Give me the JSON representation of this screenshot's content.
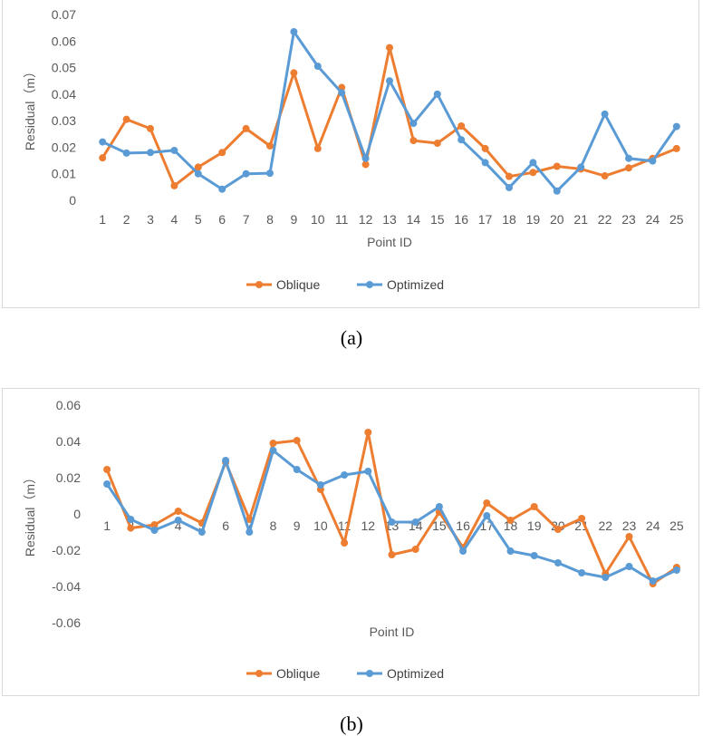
{
  "figure": {
    "caption_a": "(a)",
    "caption_b": "(b)"
  },
  "chart_data": [
    {
      "type": "line",
      "panel": "a",
      "xlabel": "Point ID",
      "ylabel": "Residual（m）",
      "categories": [
        "1",
        "2",
        "3",
        "4",
        "5",
        "6",
        "7",
        "8",
        "9",
        "10",
        "11",
        "12",
        "13",
        "14",
        "15",
        "16",
        "17",
        "18",
        "19",
        "20",
        "21",
        "22",
        "23",
        "24",
        "25"
      ],
      "yticks": [
        "0",
        "0.01",
        "0.02",
        "0.03",
        "0.04",
        "0.05",
        "0.06",
        "0.07"
      ],
      "ylim": [
        0,
        0.07
      ],
      "grid": false,
      "legend_position": "bottom",
      "series": [
        {
          "name": "Oblique",
          "color": "#ed7d31",
          "values": [
            0.016,
            0.0305,
            0.027,
            0.0055,
            0.0125,
            0.018,
            0.027,
            0.0205,
            0.048,
            0.0195,
            0.0425,
            0.0135,
            0.0575,
            0.0225,
            0.0215,
            0.028,
            0.0195,
            0.009,
            0.0105,
            0.0128,
            0.0118,
            0.0092,
            0.0122,
            0.0158,
            0.0195
          ]
        },
        {
          "name": "Optimized",
          "color": "#5b9bd5",
          "values": [
            0.022,
            0.0178,
            0.018,
            0.0188,
            0.01,
            0.0042,
            0.01,
            0.0102,
            0.0635,
            0.0505,
            0.0405,
            0.0158,
            0.045,
            0.029,
            0.04,
            0.0228,
            0.0142,
            0.0048,
            0.0142,
            0.0035,
            0.0125,
            0.0325,
            0.0158,
            0.0148,
            0.0278
          ]
        }
      ]
    },
    {
      "type": "line",
      "panel": "b",
      "xlabel": "Point ID",
      "ylabel": "Residual（m）",
      "categories": [
        "1",
        "2",
        "3",
        "4",
        "5",
        "6",
        "7",
        "8",
        "9",
        "10",
        "11",
        "12",
        "13",
        "14",
        "15",
        "16",
        "17",
        "18",
        "19",
        "20",
        "21",
        "22",
        "23",
        "24",
        "25"
      ],
      "yticks": [
        "-0.06",
        "-0.04",
        "-0.02",
        "0",
        "0.02",
        "0.04",
        "0.06"
      ],
      "ylim": [
        -0.06,
        0.06
      ],
      "grid": false,
      "legend_position": "bottom",
      "x_labels_at": "zero-line",
      "series": [
        {
          "name": "Oblique",
          "color": "#ed7d31",
          "values": [
            0.0245,
            -0.0078,
            -0.006,
            0.0015,
            -0.005,
            0.0285,
            -0.003,
            0.039,
            0.0405,
            0.0135,
            -0.016,
            0.045,
            -0.0225,
            -0.0195,
            0.001,
            -0.0185,
            0.006,
            -0.0035,
            0.004,
            -0.0085,
            -0.0025,
            -0.033,
            -0.0125,
            -0.0385,
            -0.0295
          ]
        },
        {
          "name": "Optimized",
          "color": "#5b9bd5",
          "values": [
            0.0165,
            -0.003,
            -0.009,
            -0.0035,
            -0.01,
            0.0295,
            -0.01,
            0.035,
            0.0245,
            0.016,
            0.0215,
            0.0235,
            -0.0045,
            -0.0045,
            0.004,
            -0.0205,
            -0.001,
            -0.0205,
            -0.023,
            -0.027,
            -0.0325,
            -0.035,
            -0.029,
            -0.037,
            -0.031
          ]
        }
      ]
    }
  ]
}
